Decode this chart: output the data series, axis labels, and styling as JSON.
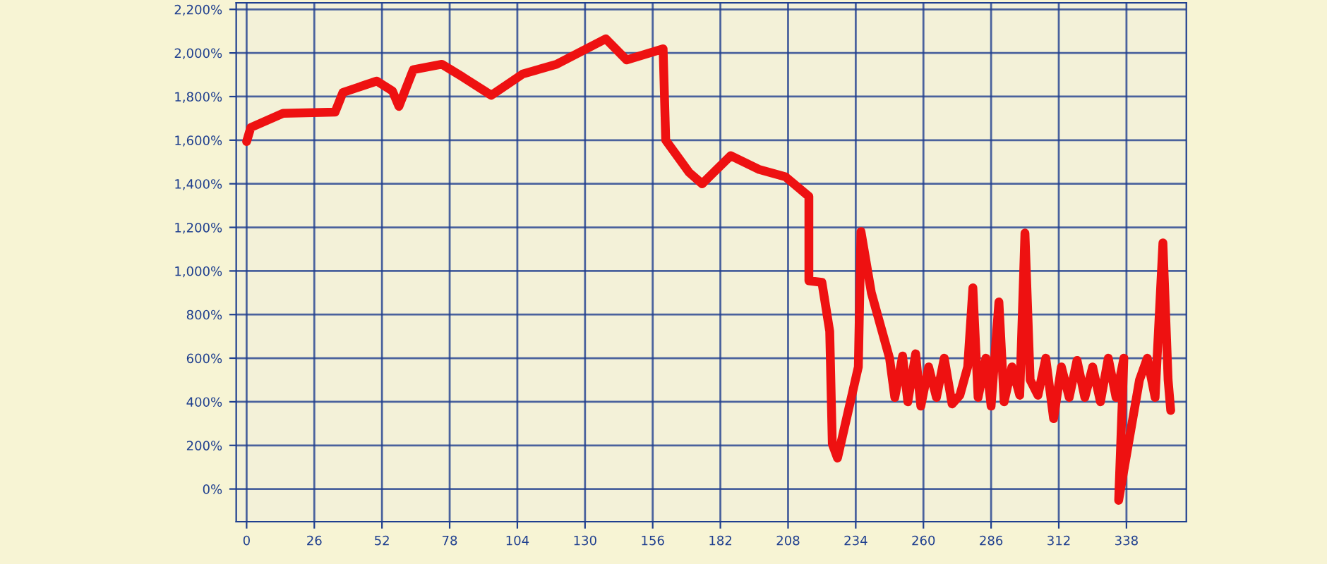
{
  "chart_data": {
    "type": "line",
    "x": [
      0,
      1.6,
      14,
      34,
      37,
      50,
      56,
      58.5,
      64,
      75,
      83,
      94,
      106,
      119,
      138,
      146,
      160,
      161,
      170,
      175,
      186,
      197,
      207,
      216,
      216,
      221,
      224,
      225,
      227,
      235,
      236,
      240,
      247,
      249,
      252,
      254,
      257,
      259,
      262,
      265,
      268,
      271,
      274,
      277,
      279,
      281,
      284,
      286,
      289,
      291,
      294,
      297,
      299,
      301,
      304,
      307,
      310,
      313,
      316,
      319,
      322,
      325,
      328,
      331,
      334,
      337,
      335,
      343,
      346,
      349,
      352,
      354,
      355
    ],
    "series": [
      {
        "color": "#ee1111",
        "values": [
          1594,
          1658,
          1723,
          1729,
          1819,
          1871,
          1826,
          1755,
          1923,
          1948,
          1890,
          1806,
          1903,
          1948,
          2065,
          1968,
          2019,
          1600,
          1452,
          1400,
          1529,
          1465,
          1432,
          1342,
          955,
          948,
          723,
          206,
          142,
          560,
          1181,
          900,
          600,
          420,
          610,
          400,
          620,
          380,
          560,
          420,
          600,
          390,
          430,
          560,
          923,
          420,
          600,
          380,
          858,
          400,
          560,
          430,
          1174,
          500,
          430,
          600,
          323,
          560,
          420,
          590,
          420,
          560,
          400,
          600,
          420,
          600,
          -52,
          500,
          600,
          420,
          1129,
          500,
          360
        ]
      }
    ],
    "xlim": [
      -4,
      361
    ],
    "ylim": [
      -150,
      2230
    ],
    "xticks": [
      0,
      26,
      52,
      78,
      104,
      130,
      156,
      182,
      208,
      234,
      260,
      286,
      312,
      338
    ],
    "yticks": [
      {
        "value": 0,
        "label": "0%"
      },
      {
        "value": 200,
        "label": "200%"
      },
      {
        "value": 400,
        "label": "400%"
      },
      {
        "value": 600,
        "label": "600%"
      },
      {
        "value": 800,
        "label": "800%"
      },
      {
        "value": 1000,
        "label": "1,000%"
      },
      {
        "value": 1200,
        "label": "1,200%"
      },
      {
        "value": 1400,
        "label": "1,400%"
      },
      {
        "value": 1600,
        "label": "1,600%"
      },
      {
        "value": 1800,
        "label": "1,800%"
      },
      {
        "value": 2000,
        "label": "2,000%"
      },
      {
        "value": 2200,
        "label": "2,200%"
      }
    ],
    "grid": true,
    "marker": "none",
    "line_style": "solid"
  }
}
